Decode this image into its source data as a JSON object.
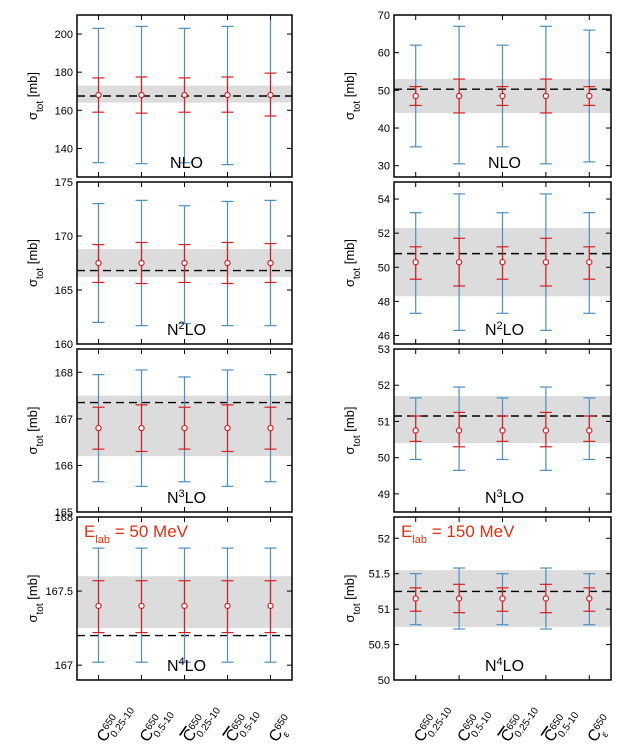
{
  "style": {
    "band_color": "#dcdcdc",
    "wide_error_color": "#4a90c4",
    "narrow_error_color": "#d62020",
    "reference_line_color": "#000000",
    "energy_label_color": "#e03010",
    "axis_color": "#000000"
  },
  "x_categories": [
    {
      "base": "C",
      "sup": "650",
      "sub": "0.25-10",
      "bar": false
    },
    {
      "base": "C",
      "sup": "650",
      "sub": "0.5-10",
      "bar": false
    },
    {
      "base": "C",
      "sup": "650",
      "sub": "0.25-10",
      "bar": true
    },
    {
      "base": "C",
      "sup": "650",
      "sub": "0.5-10",
      "bar": true
    },
    {
      "base": "C",
      "sup": "650",
      "sub": "ε",
      "bar": false
    }
  ],
  "chart_data": [
    {
      "type": "errorbar",
      "col": 0,
      "row": 0,
      "order_label": "NLO",
      "order_base": "N",
      "order_sup": "",
      "order_rest": "LO",
      "ylabel": "σ",
      "ylabel_sub": "tot",
      "ylabel_unit": " [mb]",
      "energy_label": "",
      "ylim": [
        125,
        210
      ],
      "yticks": [
        140,
        160,
        180,
        200
      ],
      "yticklabels": [
        "140",
        "160",
        "180",
        "200"
      ],
      "central": [
        168,
        168,
        168,
        168,
        168
      ],
      "narrow_lo": [
        159,
        158.5,
        159,
        159,
        157
      ],
      "narrow_hi": [
        177,
        177.5,
        177,
        177.5,
        179.5
      ],
      "wide_lo": [
        132.5,
        132,
        132.5,
        131.5,
        125
      ],
      "wide_hi": [
        203,
        204,
        203,
        204,
        210
      ],
      "band": [
        164,
        173
      ],
      "reference": 167.5
    },
    {
      "type": "errorbar",
      "col": 1,
      "row": 0,
      "order_label": "NLO",
      "order_base": "N",
      "order_sup": "",
      "order_rest": "LO",
      "ylabel": "σ",
      "ylabel_sub": "tot",
      "ylabel_unit": " [mb]",
      "energy_label": "",
      "ylim": [
        27,
        70
      ],
      "yticks": [
        30,
        40,
        50,
        60,
        70
      ],
      "yticklabels": [
        "30",
        "40",
        "50",
        "60",
        "70"
      ],
      "central": [
        48.5,
        48.5,
        48.5,
        48.5,
        48.5
      ],
      "narrow_lo": [
        46,
        44,
        46,
        44,
        46
      ],
      "narrow_hi": [
        51,
        53,
        51,
        53,
        51
      ],
      "wide_lo": [
        35,
        30.5,
        35,
        30.5,
        31
      ],
      "wide_hi": [
        62,
        67,
        62,
        67,
        66
      ],
      "band": [
        44,
        53
      ],
      "reference": 50.3
    },
    {
      "type": "errorbar",
      "col": 0,
      "row": 1,
      "order_label": "N2LO",
      "order_base": "N",
      "order_sup": "2",
      "order_rest": "LO",
      "ylabel": "σ",
      "ylabel_sub": "tot",
      "ylabel_unit": " [mb]",
      "energy_label": "",
      "ylim": [
        160,
        175
      ],
      "yticks": [
        160,
        165,
        170,
        175
      ],
      "yticklabels": [
        "160",
        "165",
        "170",
        "175"
      ],
      "central": [
        167.5,
        167.5,
        167.5,
        167.5,
        167.5
      ],
      "narrow_lo": [
        165.7,
        165.6,
        165.7,
        165.6,
        165.7
      ],
      "narrow_hi": [
        169.2,
        169.4,
        169.2,
        169.4,
        169.3
      ],
      "wide_lo": [
        162,
        161.7,
        161.9,
        161.7,
        161.7
      ],
      "wide_hi": [
        173,
        173.3,
        172.8,
        173.2,
        173.3
      ],
      "band": [
        166.2,
        168.8
      ],
      "reference": 166.8
    },
    {
      "type": "errorbar",
      "col": 1,
      "row": 1,
      "order_label": "N2LO",
      "order_base": "N",
      "order_sup": "2",
      "order_rest": "LO",
      "ylabel": "σ",
      "ylabel_sub": "tot",
      "ylabel_unit": " [mb]",
      "energy_label": "",
      "ylim": [
        45.5,
        55
      ],
      "yticks": [
        46,
        48,
        50,
        52,
        54
      ],
      "yticklabels": [
        "46",
        "48",
        "50",
        "52",
        "54"
      ],
      "central": [
        50.3,
        50.3,
        50.3,
        50.3,
        50.3
      ],
      "narrow_lo": [
        49.3,
        48.9,
        49.3,
        48.9,
        49.3
      ],
      "narrow_hi": [
        51.2,
        51.7,
        51.2,
        51.7,
        51.2
      ],
      "wide_lo": [
        47.3,
        46.3,
        47.3,
        46.3,
        47.3
      ],
      "wide_hi": [
        53.2,
        54.3,
        53.2,
        54.3,
        53.2
      ],
      "band": [
        48.3,
        52.3
      ],
      "reference": 50.8
    },
    {
      "type": "errorbar",
      "col": 0,
      "row": 2,
      "order_label": "N3LO",
      "order_base": "N",
      "order_sup": "3",
      "order_rest": "LO",
      "ylabel": "σ",
      "ylabel_sub": "tot",
      "ylabel_unit": " [mb]",
      "energy_label": "",
      "ylim": [
        165,
        168.5
      ],
      "yticks": [
        165,
        166,
        167,
        168
      ],
      "yticklabels": [
        "165",
        "166",
        "167",
        "168"
      ],
      "central": [
        166.8,
        166.8,
        166.8,
        166.8,
        166.8
      ],
      "narrow_lo": [
        166.35,
        166.3,
        166.35,
        166.3,
        166.35
      ],
      "narrow_hi": [
        167.25,
        167.3,
        167.25,
        167.3,
        167.25
      ],
      "wide_lo": [
        165.65,
        165.55,
        165.65,
        165.55,
        165.65
      ],
      "wide_hi": [
        167.95,
        168.05,
        167.9,
        168.05,
        167.95
      ],
      "band": [
        166.2,
        167.5
      ],
      "reference": 167.35
    },
    {
      "type": "errorbar",
      "col": 1,
      "row": 2,
      "order_label": "N3LO",
      "order_base": "N",
      "order_sup": "3",
      "order_rest": "LO",
      "ylabel": "σ",
      "ylabel_sub": "tot",
      "ylabel_unit": " [mb]",
      "energy_label": "",
      "ylim": [
        48.5,
        53
      ],
      "yticks": [
        49,
        50,
        51,
        52,
        53
      ],
      "yticklabels": [
        "49",
        "50",
        "51",
        "52",
        "53"
      ],
      "central": [
        50.75,
        50.75,
        50.75,
        50.75,
        50.75
      ],
      "narrow_lo": [
        50.45,
        50.3,
        50.45,
        50.3,
        50.45
      ],
      "narrow_hi": [
        51.15,
        51.25,
        51.15,
        51.25,
        51.15
      ],
      "wide_lo": [
        49.95,
        49.65,
        49.95,
        49.65,
        49.95
      ],
      "wide_hi": [
        51.65,
        51.95,
        51.65,
        51.95,
        51.65
      ],
      "band": [
        50.4,
        51.7
      ],
      "reference": 51.15
    },
    {
      "type": "errorbar",
      "col": 0,
      "row": 3,
      "order_label": "N4LO",
      "order_base": "N",
      "order_sup": "4",
      "order_rest": "LO",
      "ylabel": "σ",
      "ylabel_sub": "tot",
      "ylabel_unit": " [mb]",
      "energy_label": "E",
      "energy_sub": "lab",
      "energy_rest": " = 50 MeV",
      "ylim": [
        166.9,
        168
      ],
      "yticks": [
        167,
        167.5,
        168
      ],
      "yticklabels": [
        "167",
        "167.5",
        "168"
      ],
      "central": [
        167.4,
        167.4,
        167.4,
        167.4,
        167.4
      ],
      "narrow_lo": [
        167.22,
        167.22,
        167.22,
        167.22,
        167.22
      ],
      "narrow_hi": [
        167.57,
        167.57,
        167.57,
        167.57,
        167.57
      ],
      "wide_lo": [
        167.02,
        167.02,
        167.02,
        167.02,
        167.02
      ],
      "wide_hi": [
        167.79,
        167.79,
        167.79,
        167.79,
        167.79
      ],
      "band": [
        167.25,
        167.6
      ],
      "reference": 167.2
    },
    {
      "type": "errorbar",
      "col": 1,
      "row": 3,
      "order_label": "N4LO",
      "order_base": "N",
      "order_sup": "4",
      "order_rest": "LO",
      "ylabel": "σ",
      "ylabel_sub": "tot",
      "ylabel_unit": " [mb]",
      "energy_label": "E",
      "energy_sub": "lab",
      "energy_rest": " = 150 MeV",
      "ylim": [
        50,
        52.3
      ],
      "yticks": [
        50,
        50.5,
        51,
        51.5,
        52
      ],
      "yticklabels": [
        "50",
        "50.5",
        "51",
        "51.5",
        "52"
      ],
      "central": [
        51.15,
        51.15,
        51.15,
        51.15,
        51.15
      ],
      "narrow_lo": [
        50.97,
        50.95,
        50.97,
        50.95,
        50.97
      ],
      "narrow_hi": [
        51.3,
        51.35,
        51.3,
        51.35,
        51.3
      ],
      "wide_lo": [
        50.78,
        50.72,
        50.78,
        50.72,
        50.78
      ],
      "wide_hi": [
        51.5,
        51.58,
        51.5,
        51.58,
        51.5
      ],
      "band": [
        50.75,
        51.55
      ],
      "reference": 51.25
    }
  ]
}
